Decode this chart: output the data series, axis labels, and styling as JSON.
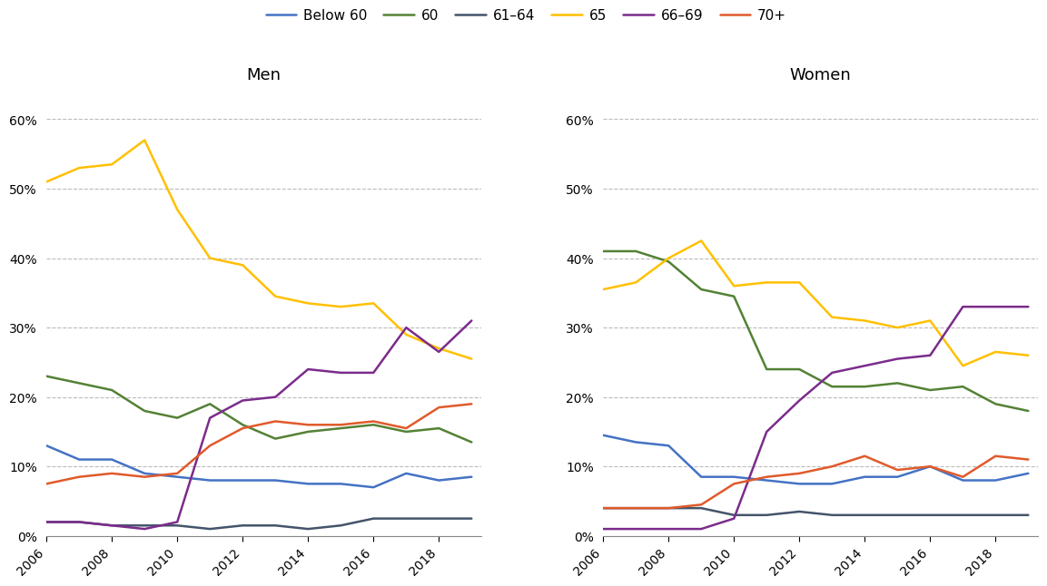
{
  "years": [
    2006,
    2007,
    2008,
    2009,
    2010,
    2011,
    2012,
    2013,
    2014,
    2015,
    2016,
    2017,
    2018,
    2019
  ],
  "men": {
    "below_60": [
      0.13,
      0.11,
      0.11,
      0.09,
      0.085,
      0.08,
      0.08,
      0.08,
      0.075,
      0.075,
      0.07,
      0.09,
      0.08,
      0.085
    ],
    "60": [
      0.23,
      0.22,
      0.21,
      0.18,
      0.17,
      0.19,
      0.16,
      0.14,
      0.15,
      0.155,
      0.16,
      0.15,
      0.155,
      0.135
    ],
    "61_64": [
      0.02,
      0.02,
      0.015,
      0.015,
      0.015,
      0.01,
      0.015,
      0.015,
      0.01,
      0.015,
      0.025,
      0.025,
      0.025,
      0.025
    ],
    "65": [
      0.51,
      0.53,
      0.535,
      0.57,
      0.47,
      0.4,
      0.39,
      0.345,
      0.335,
      0.33,
      0.335,
      0.29,
      0.27,
      0.255
    ],
    "66_69": [
      0.02,
      0.02,
      0.015,
      0.01,
      0.02,
      0.17,
      0.195,
      0.2,
      0.24,
      0.235,
      0.235,
      0.3,
      0.265,
      0.31
    ],
    "70plus": [
      0.075,
      0.085,
      0.09,
      0.085,
      0.09,
      0.13,
      0.155,
      0.165,
      0.16,
      0.16,
      0.165,
      0.155,
      0.185,
      0.19
    ]
  },
  "women": {
    "below_60": [
      0.145,
      0.135,
      0.13,
      0.085,
      0.085,
      0.08,
      0.075,
      0.075,
      0.085,
      0.085,
      0.1,
      0.08,
      0.08,
      0.09
    ],
    "60": [
      0.41,
      0.41,
      0.395,
      0.355,
      0.345,
      0.24,
      0.24,
      0.215,
      0.215,
      0.22,
      0.21,
      0.215,
      0.19,
      0.18
    ],
    "61_64": [
      0.04,
      0.04,
      0.04,
      0.04,
      0.03,
      0.03,
      0.035,
      0.03,
      0.03,
      0.03,
      0.03,
      0.03,
      0.03,
      0.03
    ],
    "65": [
      0.355,
      0.365,
      0.4,
      0.425,
      0.36,
      0.365,
      0.365,
      0.315,
      0.31,
      0.3,
      0.31,
      0.245,
      0.265,
      0.26
    ],
    "66_69": [
      0.01,
      0.01,
      0.01,
      0.01,
      0.025,
      0.15,
      0.195,
      0.235,
      0.245,
      0.255,
      0.26,
      0.33,
      0.33,
      0.33
    ],
    "70plus": [
      0.04,
      0.04,
      0.04,
      0.045,
      0.075,
      0.085,
      0.09,
      0.1,
      0.115,
      0.095,
      0.1,
      0.085,
      0.115,
      0.11
    ]
  },
  "colors": {
    "below_60": "#4472c4",
    "60": "#538135",
    "61_64": "#44546a",
    "65": "#ffc000",
    "66_69": "#7b2c8b",
    "70plus": "#e05a2b"
  },
  "legend_labels": [
    "Below 60",
    "60",
    "61–64",
    "65",
    "66–69",
    "70+"
  ],
  "title_men": "Men",
  "title_women": "Women",
  "ylim": [
    0,
    0.64
  ],
  "yticks": [
    0.0,
    0.1,
    0.2,
    0.3,
    0.4,
    0.5,
    0.6
  ],
  "ytick_labels": [
    "0%",
    "10%",
    "20%",
    "30%",
    "40%",
    "50%",
    "60%"
  ],
  "bg_color": "#ffffff",
  "grid_color": "#bbbbbb",
  "line_width": 1.8
}
